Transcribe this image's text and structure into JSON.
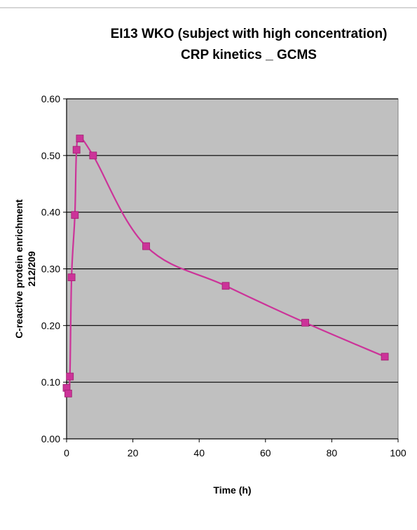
{
  "chart_data": {
    "type": "line",
    "title_line1": "EI13 WKO (subject with high concentration)",
    "title_line2": "CRP kinetics _ GCMS",
    "xlabel": "Time (h)",
    "ylabel_line1": "C-reactive protein enrichment",
    "ylabel_line2": "212/209",
    "xlim": [
      0,
      100
    ],
    "ylim": [
      0,
      0.6
    ],
    "xticks": [
      "0",
      "20",
      "40",
      "60",
      "80",
      "100"
    ],
    "yticks": [
      "0.00",
      "0.10",
      "0.20",
      "0.30",
      "0.40",
      "0.50",
      "0.60"
    ],
    "grid": true,
    "plot_background": "#c0c0c0",
    "series_color": "#cc3399",
    "series": [
      {
        "x": [
          0,
          0.5,
          1,
          1.5,
          2.5,
          3,
          4,
          8,
          24,
          48,
          72,
          96
        ],
        "y": [
          0.09,
          0.08,
          0.11,
          0.285,
          0.395,
          0.51,
          0.53,
          0.5,
          0.34,
          0.27,
          0.205,
          0.145
        ]
      }
    ]
  }
}
